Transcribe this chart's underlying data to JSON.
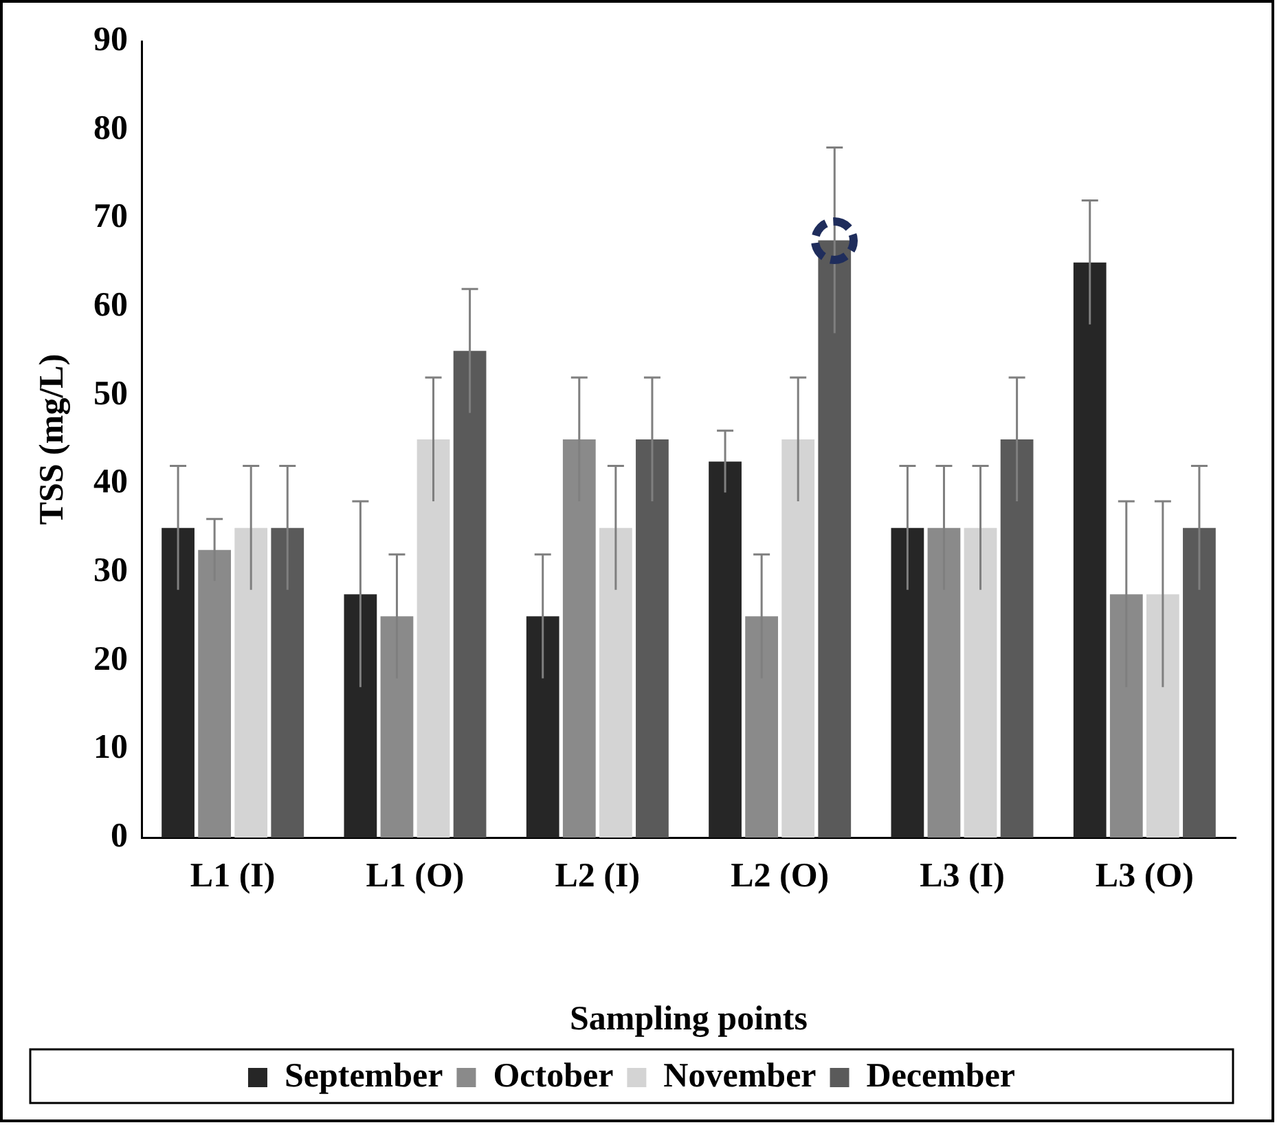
{
  "chart_data": {
    "type": "bar",
    "xlabel": "Sampling points",
    "ylabel": "TSS (mg/L)",
    "categories": [
      "L1 (I)",
      "L1 (O)",
      "L2 (I)",
      "L2 (O)",
      "L3 (I)",
      "L3 (O)"
    ],
    "series": [
      {
        "name": "September",
        "color": "#262626",
        "values": [
          35,
          27.5,
          25,
          42.5,
          35,
          65
        ],
        "errors": [
          7,
          10.5,
          7,
          3.5,
          7,
          7
        ]
      },
      {
        "name": "October",
        "color": "#8a8a8a",
        "values": [
          32.5,
          25,
          45,
          25,
          35,
          27.5
        ],
        "errors": [
          3.5,
          7,
          7,
          7,
          7,
          10.5
        ]
      },
      {
        "name": "November",
        "color": "#d4d4d4",
        "values": [
          35,
          45,
          35,
          45,
          35,
          27.5
        ],
        "errors": [
          7,
          7,
          7,
          7,
          7,
          10.5
        ]
      },
      {
        "name": "December",
        "color": "#5a5a5a",
        "values": [
          35,
          55,
          45,
          67.5,
          45,
          35
        ],
        "errors": [
          7,
          7,
          7,
          10.5,
          7,
          7
        ]
      }
    ],
    "ylim": [
      0,
      90
    ],
    "yticks": [
      0,
      10,
      20,
      30,
      40,
      50,
      60,
      70,
      80,
      90
    ],
    "grid": false,
    "legend": "bottom"
  }
}
